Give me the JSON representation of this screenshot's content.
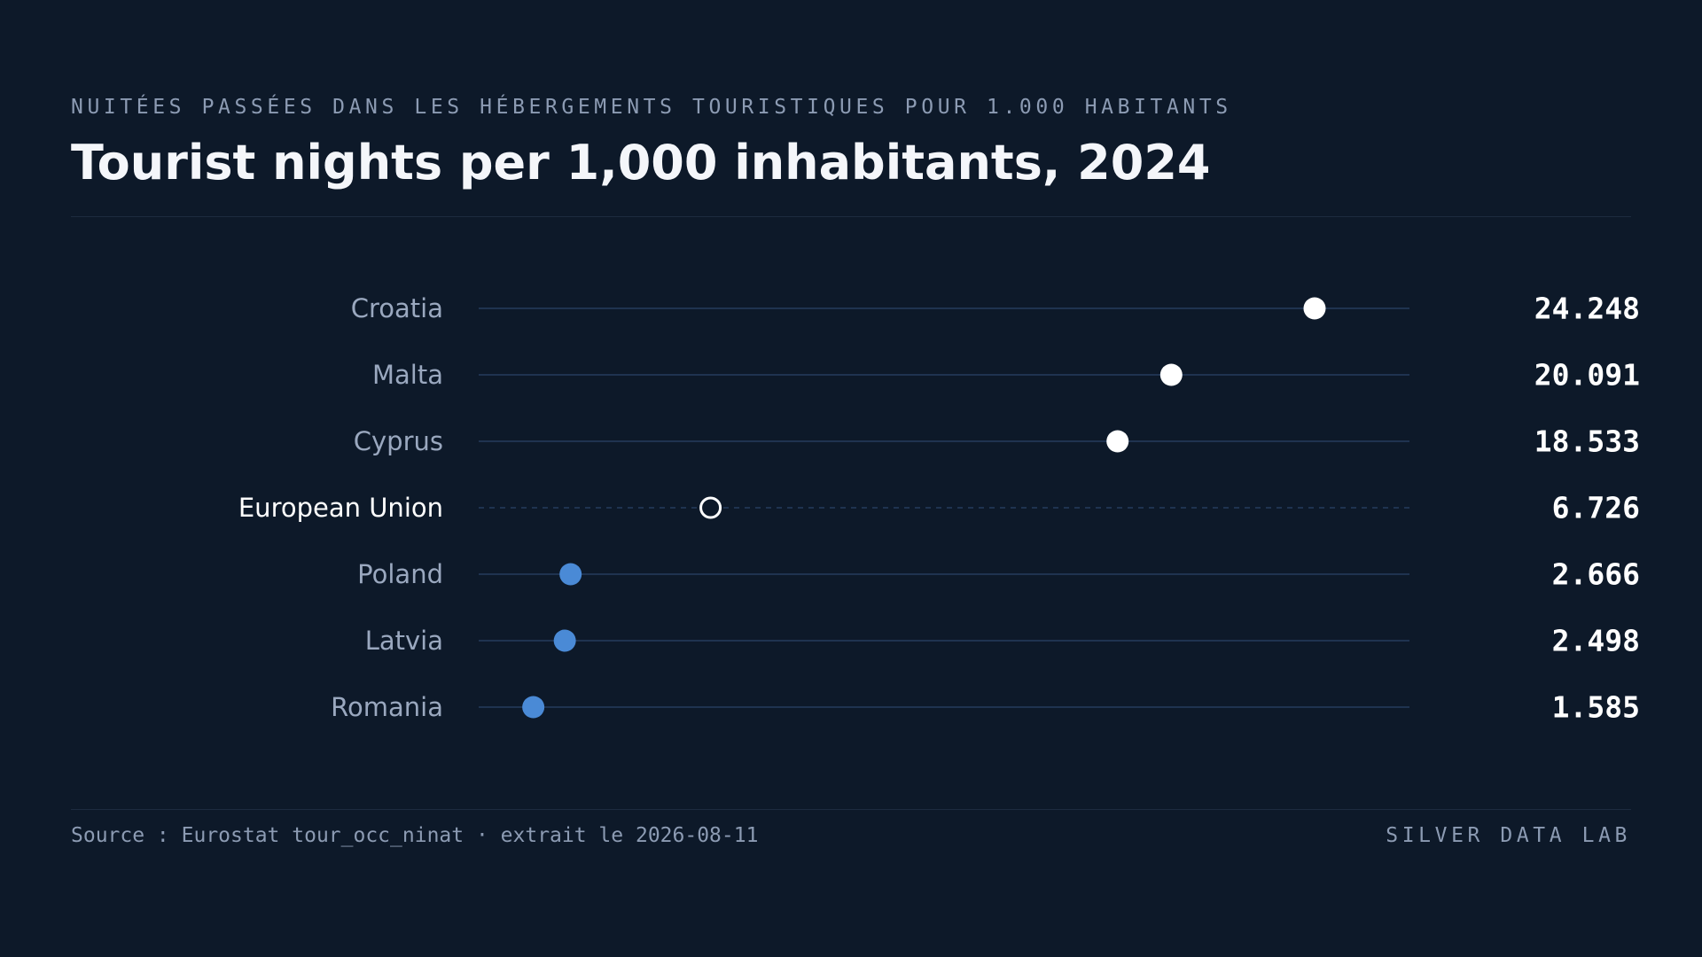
{
  "header": {
    "eyebrow": "NUITÉES PASSÉES DANS LES HÉBERGEMENTS TOURISTIQUES POUR 1.000 HABITANTS",
    "title": "Tourist nights per 1,000 inhabitants, 2024"
  },
  "footer": {
    "source": "Source : Eurostat tour_occ_ninat · extrait le 2026-08-11",
    "brand": "SILVER DATA LAB"
  },
  "colors": {
    "background": "#0d1929",
    "top_dot": "#ffffff",
    "bottom_dot": "#4a8ad6",
    "reference_dot_stroke": "#ffffff",
    "track": "#1f3350",
    "label": "#9aa8bf",
    "reference_label": "#ffffff",
    "value": "#ffffff"
  },
  "chart_data": {
    "type": "dot",
    "title": "Tourist nights per 1,000 inhabitants, 2024",
    "xlim": [
      0,
      27000
    ],
    "grid": false,
    "categories": [
      "Croatia",
      "Malta",
      "Cyprus",
      "European Union",
      "Poland",
      "Latvia",
      "Romania"
    ],
    "values": [
      24248,
      20091,
      18533,
      6726,
      2666,
      2498,
      1585
    ],
    "value_labels": [
      "24.248",
      "20.091",
      "18.533",
      "6.726",
      "2.666",
      "2.498",
      "1.585"
    ],
    "groups": [
      "top",
      "top",
      "top",
      "reference",
      "bottom",
      "bottom",
      "bottom"
    ]
  }
}
